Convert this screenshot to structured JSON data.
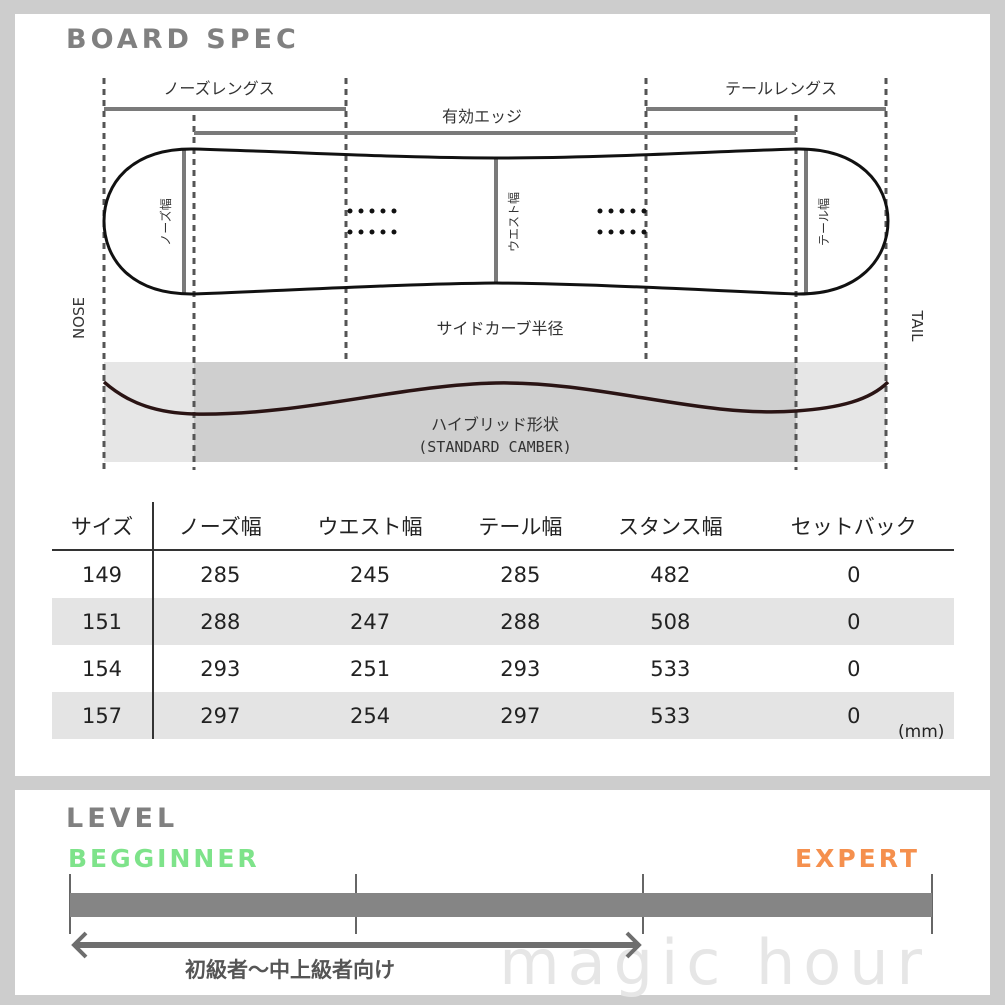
{
  "spec": {
    "title": "BOARD SPEC",
    "labels": {
      "nose_length": "ノーズレングス",
      "tail_length": "テールレングス",
      "effective_edge": "有効エッジ",
      "nose_width": "ノーズ幅",
      "waist_width": "ウエスト幅",
      "tail_width": "テール幅",
      "sidecut_radius": "サイドカーブ半径",
      "nose": "NOSE",
      "tail": "TAIL",
      "profile": "ハイブリッド形状",
      "profile_type": "(STANDARD CAMBER)"
    },
    "table": {
      "headers": [
        "サイズ",
        "ノーズ幅",
        "ウエスト幅",
        "テール幅",
        "スタンス幅",
        "セットバック"
      ],
      "rows": [
        [
          "149",
          "285",
          "245",
          "285",
          "482",
          "0"
        ],
        [
          "151",
          "288",
          "247",
          "288",
          "508",
          "0"
        ],
        [
          "154",
          "293",
          "251",
          "293",
          "533",
          "0"
        ],
        [
          "157",
          "297",
          "254",
          "297",
          "533",
          "0"
        ]
      ],
      "unit": "(mm)"
    }
  },
  "level": {
    "title": "LEVEL",
    "beginner": "BEGGINNER",
    "expert": "EXPERT",
    "range_label": "初級者～中上級者向け",
    "watermark": "magic hour",
    "range_from": 0,
    "range_to": 0.667,
    "colors": {
      "beginner": "#7ee38a",
      "expert": "#f5904e",
      "bar": "#858585"
    }
  }
}
